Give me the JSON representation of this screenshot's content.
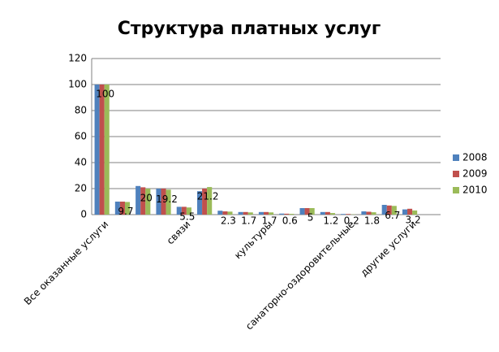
{
  "chart_data": {
    "type": "bar",
    "title": "Структура платных услуг",
    "categories": [
      "Все оказанные услуги",
      null,
      null,
      null,
      "связи",
      null,
      null,
      null,
      "культуры",
      null,
      null,
      null,
      "санаторно-оздоровительные",
      null,
      null,
      "другие услуги"
    ],
    "series": [
      {
        "name": "2008",
        "color": "#4f81bd",
        "values": [
          100,
          10,
          22,
          20,
          6,
          18,
          3,
          2,
          2,
          0.8,
          5,
          2,
          0.5,
          2.5,
          7.5,
          4
        ]
      },
      {
        "name": "2009",
        "color": "#c0504d",
        "values": [
          100,
          10,
          21,
          20,
          6,
          20,
          2.5,
          2,
          2,
          0.7,
          5,
          2,
          0.5,
          2.2,
          7,
          4.5
        ]
      },
      {
        "name": "2010",
        "color": "#9bbb59",
        "values": [
          100,
          9.7,
          20,
          19.2,
          5.5,
          21.2,
          2.3,
          1.7,
          1.7,
          0.6,
          5,
          1.2,
          0.2,
          1.8,
          6.7,
          3.2
        ]
      }
    ],
    "data_labels_series": 2,
    "ylim": [
      0,
      120
    ],
    "yticks": [
      0,
      20,
      40,
      60,
      80,
      100,
      120
    ],
    "grid": true,
    "legend": "right"
  }
}
